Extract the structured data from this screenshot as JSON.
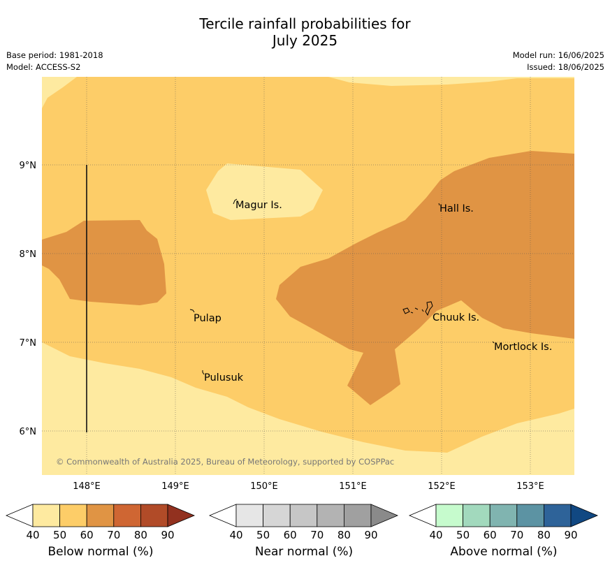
{
  "title_line1": "Tercile rainfall probabilities for",
  "title_line2": "July 2025",
  "meta_left": [
    "Base period: 1981-2018",
    "Model: ACCESS-S2"
  ],
  "meta_right": [
    "Model run: 16/06/2025",
    "Issued: 18/06/2025"
  ],
  "copyright": "© Commonwealth of Australia 2025, Bureau of Meteorology, supported by COSPPac",
  "lon_ticks": [
    "148°E",
    "149°E",
    "150°E",
    "151°E",
    "152°E",
    "153°E"
  ],
  "lat_ticks": [
    "9°N",
    "8°N",
    "7°N",
    "6°N"
  ],
  "places": [
    {
      "name": "Magur Is.",
      "lon": 149.7,
      "lat": 8.55
    },
    {
      "name": "Hall Is.",
      "lon": 151.98,
      "lat": 8.5
    },
    {
      "name": "Pulap",
      "lon": 149.22,
      "lat": 7.28
    },
    {
      "name": "Chuuk Is.",
      "lon": 151.9,
      "lat": 7.3
    },
    {
      "name": "Mortlock Is.",
      "lon": 152.6,
      "lat": 6.95
    },
    {
      "name": "Pulusuk",
      "lon": 149.32,
      "lat": 6.62
    }
  ],
  "colorbars": [
    {
      "title": "Below normal (%)",
      "labels": [
        "40",
        "50",
        "60",
        "70",
        "80",
        "90"
      ],
      "colors": [
        "#ffffff",
        "#feeaa0",
        "#fdcd68",
        "#e09444",
        "#cf6633",
        "#b14b28",
        "#92311f"
      ]
    },
    {
      "title": "Near normal (%)",
      "labels": [
        "40",
        "50",
        "60",
        "70",
        "80",
        "90"
      ],
      "colors": [
        "#ffffff",
        "#e6e6e6",
        "#d6d6d6",
        "#c6c6c6",
        "#b3b3b3",
        "#a0a0a0",
        "#8a8a8a"
      ]
    },
    {
      "title": "Above normal (%)",
      "labels": [
        "40",
        "50",
        "60",
        "70",
        "80",
        "90"
      ],
      "colors": [
        "#ffffff",
        "#c6fbcd",
        "#a2d9bd",
        "#80b4b0",
        "#5c93a3",
        "#2e6399",
        "#114882"
      ]
    }
  ],
  "map_colors": {
    "band_40_50": "#feeaa0",
    "band_50_60": "#fdcd68",
    "band_60_70": "#e09444"
  }
}
